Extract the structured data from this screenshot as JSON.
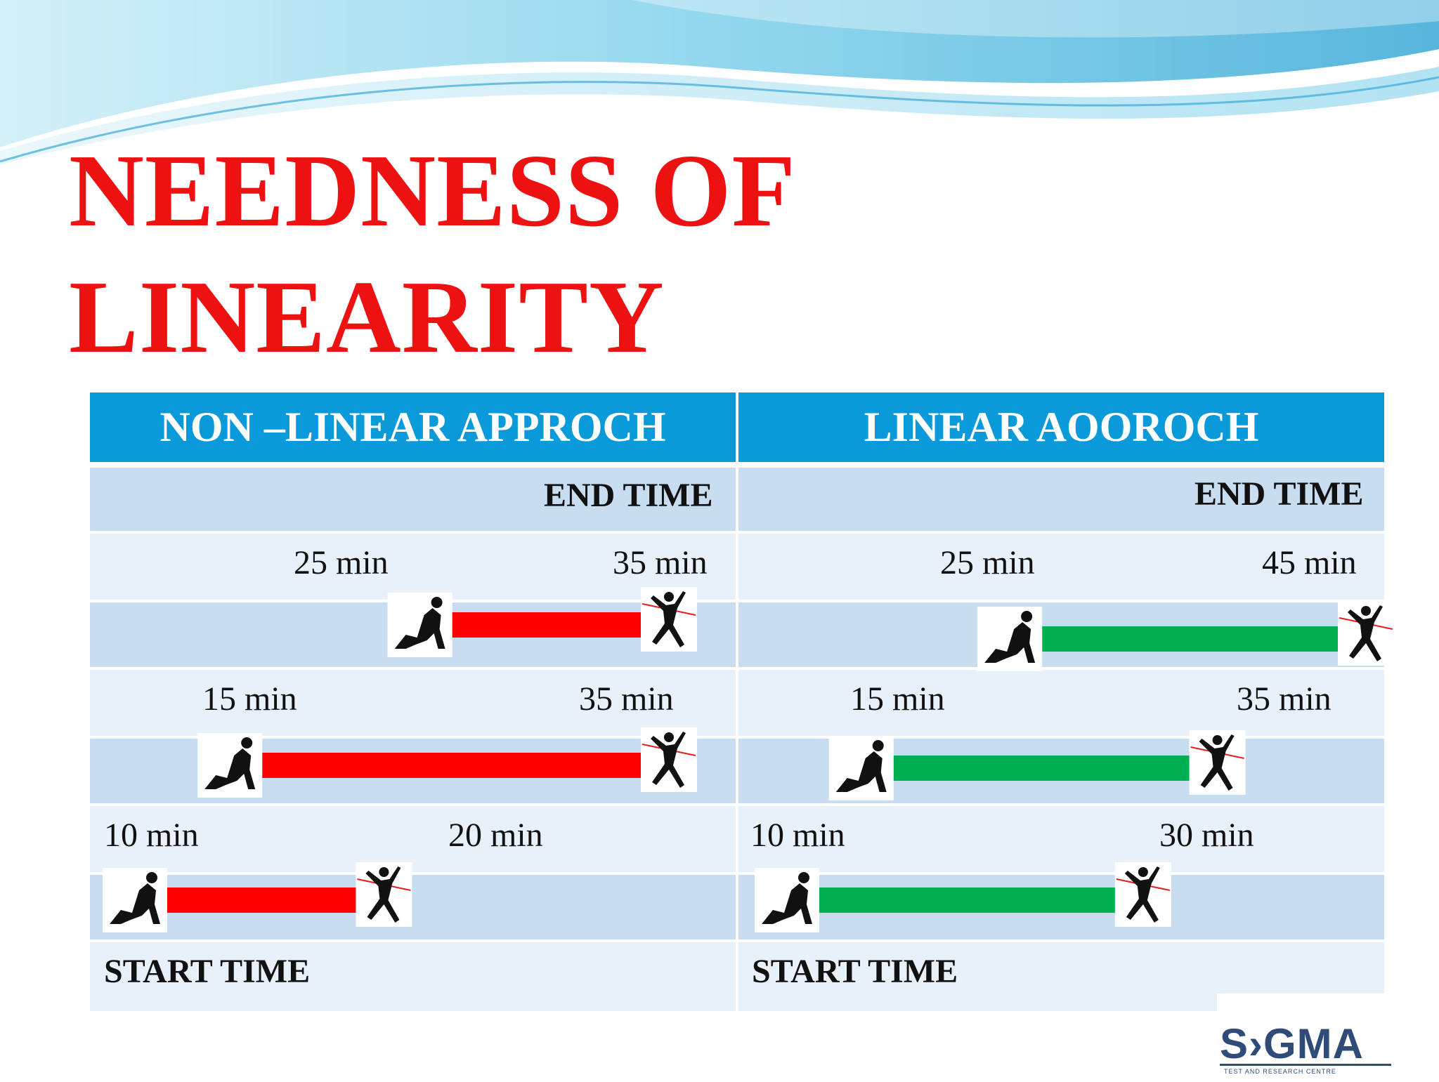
{
  "title_line1": "NEEDNESS OF",
  "title_line2": "LINEARITY",
  "colors": {
    "title": "#ee1111",
    "header": "#0a9ad9",
    "nonlinear_bar": "#ff0000",
    "linear_bar": "#00b050",
    "row_dark": "#c9ddf0",
    "row_light": "#e8f0f9"
  },
  "columns": [
    {
      "header": "NON –LINEAR APPROCH",
      "end_label": "END TIME",
      "start_label": "START TIME",
      "bar_color": "#ff0000",
      "rows": [
        {
          "start": 25,
          "end": 35,
          "start_label": "25 min",
          "end_label": "35 min"
        },
        {
          "start": 15,
          "end": 35,
          "start_label": "15 min",
          "end_label": "35 min"
        },
        {
          "start": 10,
          "end": 20,
          "start_label": "10 min",
          "end_label": "20 min"
        }
      ]
    },
    {
      "header": "LINEAR AOOROCH",
      "end_label": "END TIME",
      "start_label": "START TIME",
      "bar_color": "#00b050",
      "rows": [
        {
          "start": 25,
          "end": 45,
          "start_label": "25 min",
          "end_label": "45 min"
        },
        {
          "start": 15,
          "end": 35,
          "start_label": "15 min",
          "end_label": "35 min"
        },
        {
          "start": 10,
          "end": 30,
          "start_label": "10 min",
          "end_label": "30 min"
        }
      ]
    }
  ],
  "icons": {
    "start": "crouching-runner-icon",
    "finish": "finishing-runner-icon"
  },
  "logo_text": "S›GMA",
  "logo_subtitle": "TEST AND RESEARCH CENTRE"
}
